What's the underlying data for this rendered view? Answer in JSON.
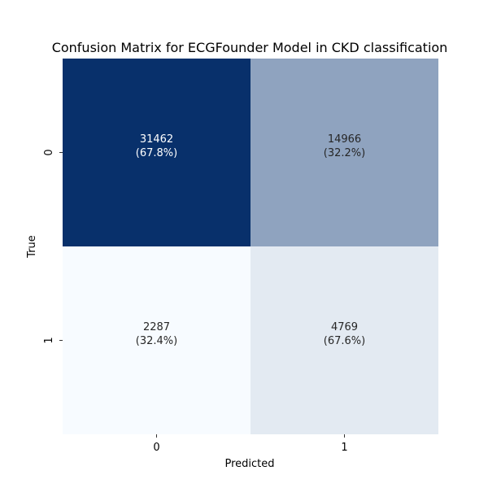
{
  "chart_data": {
    "type": "heatmap",
    "title": "Confusion Matrix for ECGFounder Model in CKD classification",
    "xlabel": "Predicted",
    "ylabel": "True",
    "x_categories": [
      "0",
      "1"
    ],
    "y_categories": [
      "0",
      "1"
    ],
    "values": [
      [
        31462,
        14966
      ],
      [
        2287,
        4769
      ]
    ],
    "cell_labels": [
      [
        "31462\n(67.8%)",
        "14966\n(32.2%)"
      ],
      [
        "2287\n(32.4%)",
        "4769\n(67.6%)"
      ]
    ],
    "row_percentages": [
      [
        67.8,
        32.2
      ],
      [
        32.4,
        67.6
      ]
    ],
    "colormap": "Blues",
    "color_low": "#f7fbff",
    "color_high": "#08306b",
    "colorbar": false,
    "grid": false
  }
}
